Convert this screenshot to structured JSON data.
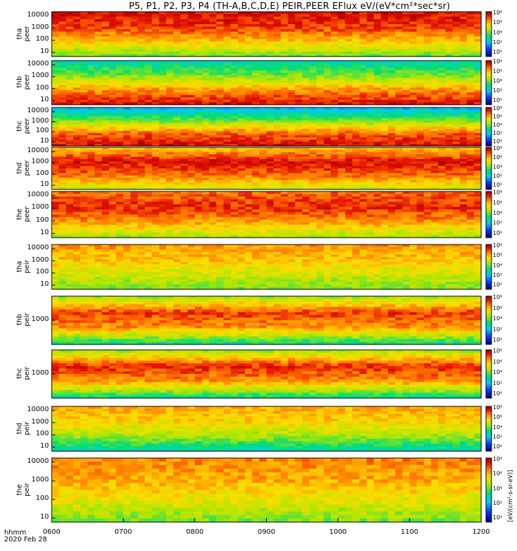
{
  "title": "P5, P1, P2, P3, P4 (TH-A,B,C,D,E) PEIR,PEER EFlux eV/(eV*cm²*sec*sr)",
  "x_axis": {
    "ticks": [
      "0600",
      "0700",
      "0800",
      "0900",
      "1000",
      "1100",
      "1200"
    ],
    "label": "hhmm",
    "date": "2020 Feb 28"
  },
  "colorbar": {
    "label": "[eV/(cm²-s-sr-eV)]",
    "ticks": [
      "10⁸",
      "10⁶",
      "10⁴",
      "10²",
      "10⁰"
    ]
  },
  "colors": {
    "background": "#ffffff",
    "high": "#cc0000",
    "mid": "#ffcc00",
    "low": "#00cc66",
    "floor": "#0000ff"
  },
  "chart_data": [
    {
      "type": "heatmap",
      "probe": "tha",
      "species": "peer",
      "ylabel": "tha peer",
      "yscale": "log",
      "yticks": [
        "10000",
        "1000",
        "100",
        "10"
      ],
      "xrange": [
        "0600",
        "1200"
      ],
      "bands": [
        {
          "e": 10,
          "level": 0.55
        },
        {
          "e": 100,
          "level": 0.75
        },
        {
          "e": 1000,
          "level": 0.9
        },
        {
          "e": 10000,
          "level": 0.95
        }
      ]
    },
    {
      "type": "heatmap",
      "probe": "thb",
      "species": "peer",
      "ylabel": "thb peer",
      "yscale": "log",
      "yticks": [
        "10000",
        "1000",
        "100",
        "10"
      ],
      "xrange": [
        "0600",
        "1200"
      ],
      "bands": [
        {
          "e": 10,
          "level": 0.95
        },
        {
          "e": 100,
          "level": 0.8
        },
        {
          "e": 1000,
          "level": 0.55
        },
        {
          "e": 10000,
          "level": 0.4
        }
      ]
    },
    {
      "type": "heatmap",
      "probe": "thc",
      "species": "peer",
      "ylabel": "thc peer",
      "yscale": "log",
      "yticks": [
        "10000",
        "1000",
        "100",
        "10"
      ],
      "xrange": [
        "0600",
        "1200"
      ],
      "bands": [
        {
          "e": 10,
          "level": 0.95
        },
        {
          "e": 100,
          "level": 0.85
        },
        {
          "e": 1000,
          "level": 0.55
        },
        {
          "e": 10000,
          "level": 0.3
        }
      ]
    },
    {
      "type": "heatmap",
      "probe": "thd",
      "species": "peer",
      "ylabel": "thd peer",
      "yscale": "log",
      "yticks": [
        "10000",
        "1000",
        "100",
        "10"
      ],
      "xrange": [
        "0600",
        "1200"
      ],
      "bands": [
        {
          "e": 10,
          "level": 0.65
        },
        {
          "e": 100,
          "level": 0.85
        },
        {
          "e": 1000,
          "level": 0.95
        },
        {
          "e": 10000,
          "level": 0.75
        }
      ]
    },
    {
      "type": "heatmap",
      "probe": "the",
      "species": "peer",
      "ylabel": "the peer",
      "yscale": "log",
      "yticks": [
        "10000",
        "1000",
        "100",
        "10"
      ],
      "xrange": [
        "0600",
        "1200"
      ],
      "bands": [
        {
          "e": 10,
          "level": 0.6
        },
        {
          "e": 100,
          "level": 0.8
        },
        {
          "e": 1000,
          "level": 0.92
        },
        {
          "e": 10000,
          "level": 0.85
        }
      ]
    },
    {
      "type": "heatmap",
      "probe": "tha",
      "species": "peir",
      "ylabel": "tha peir",
      "yscale": "log",
      "yticks": [
        "10000",
        "1000",
        "100",
        "10"
      ],
      "xrange": [
        "0600",
        "1200"
      ],
      "bands": [
        {
          "e": 10,
          "level": 0.55
        },
        {
          "e": 100,
          "level": 0.65
        },
        {
          "e": 1000,
          "level": 0.75
        },
        {
          "e": 10000,
          "level": 0.8
        }
      ]
    },
    {
      "type": "heatmap",
      "probe": "thb",
      "species": "peir",
      "ylabel": "thb peir",
      "yscale": "log",
      "yticks": [
        "1000"
      ],
      "xrange": [
        "0600",
        "1200"
      ],
      "bands": [
        {
          "e": 10,
          "level": 0.45
        },
        {
          "e": 100,
          "level": 0.8
        },
        {
          "e": 1000,
          "level": 0.9
        },
        {
          "e": 10000,
          "level": 0.6
        }
      ]
    },
    {
      "type": "heatmap",
      "probe": "thc",
      "species": "peir",
      "ylabel": "thc peir",
      "yscale": "log",
      "yticks": [
        "1000"
      ],
      "xrange": [
        "0600",
        "1200"
      ],
      "bands": [
        {
          "e": 10,
          "level": 0.45
        },
        {
          "e": 100,
          "level": 0.8
        },
        {
          "e": 1000,
          "level": 0.92
        },
        {
          "e": 10000,
          "level": 0.6
        }
      ]
    },
    {
      "type": "heatmap",
      "probe": "thd",
      "species": "peir",
      "ylabel": "thd peir",
      "yscale": "log",
      "yticks": [
        "10000",
        "1000",
        "100",
        "10"
      ],
      "xrange": [
        "0600",
        "1200"
      ],
      "bands": [
        {
          "e": 10,
          "level": 0.4
        },
        {
          "e": 100,
          "level": 0.6
        },
        {
          "e": 1000,
          "level": 0.72
        },
        {
          "e": 10000,
          "level": 0.78
        }
      ]
    },
    {
      "type": "heatmap",
      "probe": "the",
      "species": "peir",
      "ylabel": "the peir",
      "yscale": "log",
      "yticks": [
        "10000",
        "1000",
        "100",
        "10"
      ],
      "xrange": [
        "0600",
        "1200"
      ],
      "bands": [
        {
          "e": 10,
          "level": 0.55
        },
        {
          "e": 100,
          "level": 0.68
        },
        {
          "e": 1000,
          "level": 0.78
        },
        {
          "e": 10000,
          "level": 0.82
        }
      ]
    }
  ]
}
